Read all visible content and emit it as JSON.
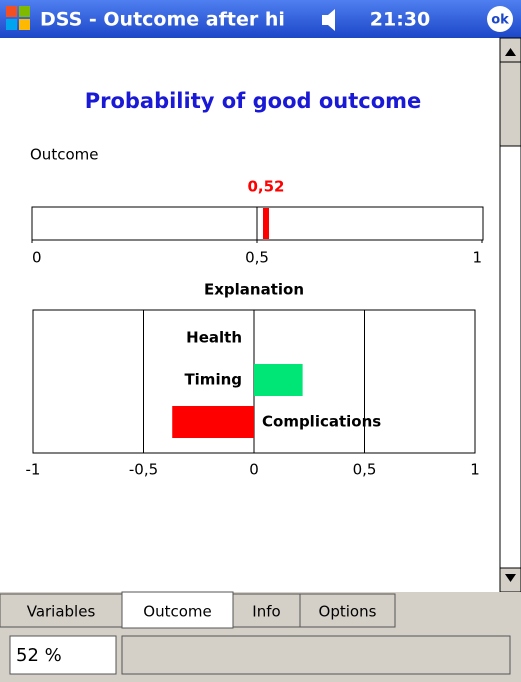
{
  "title_bar": {
    "app": "DSS - Outcome after hi",
    "time": "21:30",
    "ok": "ok"
  },
  "content": {
    "title": "Probability of good outcome",
    "outcome_label": "Outcome",
    "outcome_chart": {
      "type": "gauge",
      "value": 0.52,
      "value_label": "0,52",
      "color": "#ff0000",
      "xlim": [
        0,
        1
      ],
      "xticks": [
        0,
        {
          "value": 0.5,
          "label": "0,5"
        },
        1
      ]
    },
    "explanation_chart": {
      "type": "bar",
      "title": "Explanation",
      "categories": [
        "Health",
        "Timing",
        "Complications"
      ],
      "values": [
        0,
        0.22,
        -0.37
      ],
      "positive_color": "#00e676",
      "negative_color": "#ff0000",
      "xlim": [
        -1,
        1
      ],
      "xticks": [
        -1,
        {
          "value": -0.5,
          "label": "-0,5"
        },
        0,
        {
          "value": 0.5,
          "label": "0,5"
        },
        1
      ],
      "grid": true
    }
  },
  "tabs": [
    "Variables",
    "Outcome",
    "Info",
    "Options"
  ],
  "active_tab": 1,
  "status": {
    "percent": "52 %"
  }
}
